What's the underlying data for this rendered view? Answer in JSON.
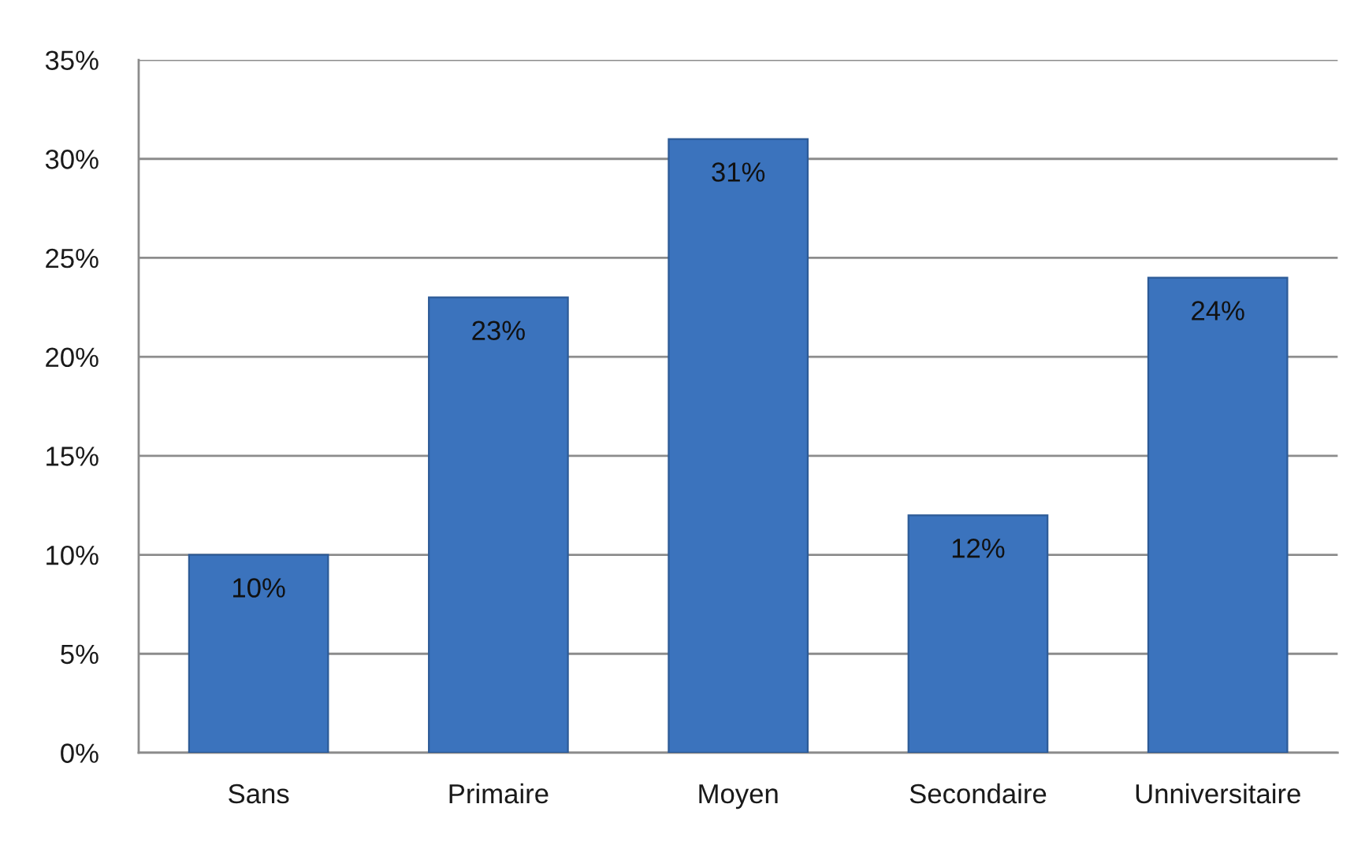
{
  "chart_data": {
    "type": "bar",
    "categories": [
      "Sans",
      "Primaire",
      "Moyen",
      "Secondaire",
      "Unniversitaire"
    ],
    "values": [
      10,
      23,
      31,
      12,
      24
    ],
    "value_labels": [
      "10%",
      "23%",
      "31%",
      "12%",
      "24%"
    ],
    "color": "#3b73bd",
    "ylim": [
      0,
      35
    ],
    "yticks": [
      {
        "value": 0,
        "label": "0%"
      },
      {
        "value": 5,
        "label": "5%"
      },
      {
        "value": 10,
        "label": "10%"
      },
      {
        "value": 15,
        "label": "15%"
      },
      {
        "value": 20,
        "label": "20%"
      },
      {
        "value": 25,
        "label": "25%"
      },
      {
        "value": 30,
        "label": "30%"
      },
      {
        "value": 35,
        "label": "35%"
      }
    ],
    "grid": "y"
  }
}
